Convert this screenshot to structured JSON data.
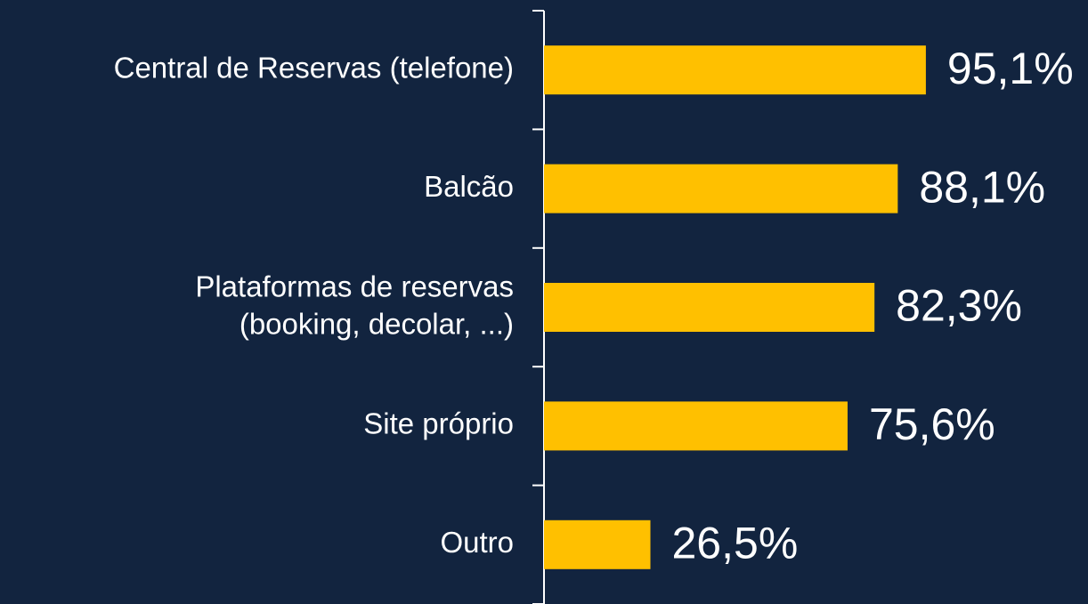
{
  "chart_data": {
    "type": "bar",
    "orientation": "horizontal",
    "categories": [
      "Central de Reservas (telefone)",
      "Balcão",
      "Plataformas de reservas\n(booking, decolar, ...)",
      "Site próprio",
      "Outro"
    ],
    "values": [
      95.1,
      88.1,
      82.3,
      75.6,
      26.5
    ],
    "value_labels": [
      "95,1%",
      "88,1%",
      "82,3%",
      "75,6%",
      "26,5%"
    ],
    "color": "#ffc000",
    "xlim": [
      0,
      100
    ]
  }
}
